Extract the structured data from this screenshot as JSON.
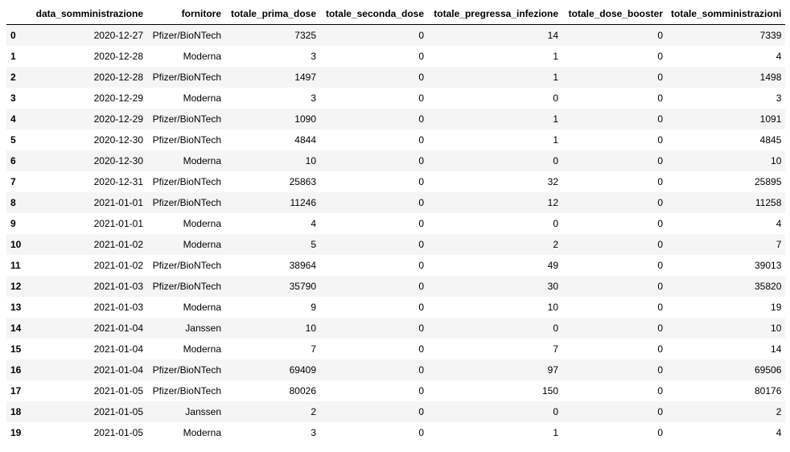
{
  "table": {
    "index_header": "",
    "columns": [
      "data_somministrazione",
      "fornitore",
      "totale_prima_dose",
      "totale_seconda_dose",
      "totale_pregressa_infezione",
      "totale_dose_booster",
      "totale_somministrazioni"
    ],
    "rows": [
      {
        "index": "0",
        "cells": [
          "2020-12-27",
          "Pfizer/BioNTech",
          "7325",
          "0",
          "14",
          "0",
          "7339"
        ]
      },
      {
        "index": "1",
        "cells": [
          "2020-12-28",
          "Moderna",
          "3",
          "0",
          "1",
          "0",
          "4"
        ]
      },
      {
        "index": "2",
        "cells": [
          "2020-12-28",
          "Pfizer/BioNTech",
          "1497",
          "0",
          "1",
          "0",
          "1498"
        ]
      },
      {
        "index": "3",
        "cells": [
          "2020-12-29",
          "Moderna",
          "3",
          "0",
          "0",
          "0",
          "3"
        ]
      },
      {
        "index": "4",
        "cells": [
          "2020-12-29",
          "Pfizer/BioNTech",
          "1090",
          "0",
          "1",
          "0",
          "1091"
        ]
      },
      {
        "index": "5",
        "cells": [
          "2020-12-30",
          "Pfizer/BioNTech",
          "4844",
          "0",
          "1",
          "0",
          "4845"
        ]
      },
      {
        "index": "6",
        "cells": [
          "2020-12-30",
          "Moderna",
          "10",
          "0",
          "0",
          "0",
          "10"
        ]
      },
      {
        "index": "7",
        "cells": [
          "2020-12-31",
          "Pfizer/BioNTech",
          "25863",
          "0",
          "32",
          "0",
          "25895"
        ]
      },
      {
        "index": "8",
        "cells": [
          "2021-01-01",
          "Pfizer/BioNTech",
          "11246",
          "0",
          "12",
          "0",
          "11258"
        ]
      },
      {
        "index": "9",
        "cells": [
          "2021-01-01",
          "Moderna",
          "4",
          "0",
          "0",
          "0",
          "4"
        ]
      },
      {
        "index": "10",
        "cells": [
          "2021-01-02",
          "Moderna",
          "5",
          "0",
          "2",
          "0",
          "7"
        ]
      },
      {
        "index": "11",
        "cells": [
          "2021-01-02",
          "Pfizer/BioNTech",
          "38964",
          "0",
          "49",
          "0",
          "39013"
        ]
      },
      {
        "index": "12",
        "cells": [
          "2021-01-03",
          "Pfizer/BioNTech",
          "35790",
          "0",
          "30",
          "0",
          "35820"
        ]
      },
      {
        "index": "13",
        "cells": [
          "2021-01-03",
          "Moderna",
          "9",
          "0",
          "10",
          "0",
          "19"
        ]
      },
      {
        "index": "14",
        "cells": [
          "2021-01-04",
          "Janssen",
          "10",
          "0",
          "0",
          "0",
          "10"
        ]
      },
      {
        "index": "15",
        "cells": [
          "2021-01-04",
          "Moderna",
          "7",
          "0",
          "7",
          "0",
          "14"
        ]
      },
      {
        "index": "16",
        "cells": [
          "2021-01-04",
          "Pfizer/BioNTech",
          "69409",
          "0",
          "97",
          "0",
          "69506"
        ]
      },
      {
        "index": "17",
        "cells": [
          "2021-01-05",
          "Pfizer/BioNTech",
          "80026",
          "0",
          "150",
          "0",
          "80176"
        ]
      },
      {
        "index": "18",
        "cells": [
          "2021-01-05",
          "Janssen",
          "2",
          "0",
          "0",
          "0",
          "2"
        ]
      },
      {
        "index": "19",
        "cells": [
          "2021-01-05",
          "Moderna",
          "3",
          "0",
          "1",
          "0",
          "4"
        ]
      }
    ]
  },
  "colors": {
    "row_stripe": "#f5f5f5",
    "header_rule": "#000000"
  }
}
